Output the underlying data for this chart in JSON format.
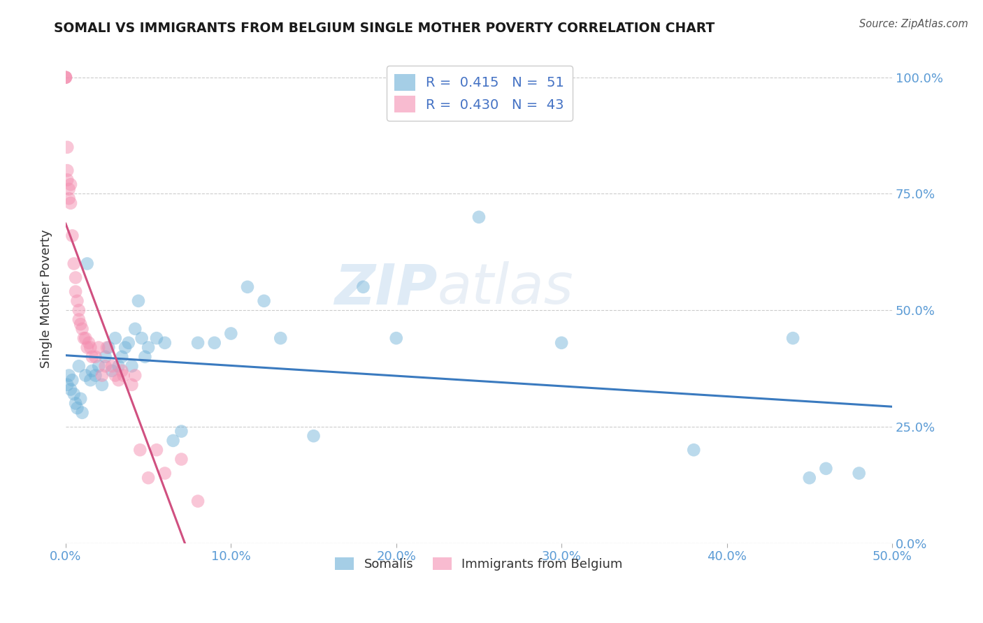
{
  "title": "SOMALI VS IMMIGRANTS FROM BELGIUM SINGLE MOTHER POVERTY CORRELATION CHART",
  "source": "Source: ZipAtlas.com",
  "ylabel": "Single Mother Poverty",
  "legend_label_somali": "Somalis",
  "legend_label_belgium": "Immigrants from Belgium",
  "somali_color": "#6aaed6",
  "belgium_color": "#f48fb1",
  "trend_somali_color": "#3a7abf",
  "trend_belgium_color": "#d05080",
  "watermark_zip": "ZIP",
  "watermark_atlas": "atlas",
  "somali_x": [
    0.001,
    0.002,
    0.003,
    0.004,
    0.005,
    0.006,
    0.007,
    0.008,
    0.009,
    0.01,
    0.012,
    0.013,
    0.015,
    0.016,
    0.018,
    0.02,
    0.022,
    0.024,
    0.026,
    0.028,
    0.03,
    0.032,
    0.034,
    0.036,
    0.038,
    0.04,
    0.042,
    0.044,
    0.046,
    0.048,
    0.05,
    0.055,
    0.06,
    0.065,
    0.07,
    0.08,
    0.09,
    0.1,
    0.11,
    0.12,
    0.13,
    0.15,
    0.18,
    0.2,
    0.25,
    0.3,
    0.38,
    0.44,
    0.45,
    0.46,
    0.48
  ],
  "somali_y": [
    0.34,
    0.36,
    0.33,
    0.35,
    0.32,
    0.3,
    0.29,
    0.38,
    0.31,
    0.28,
    0.36,
    0.6,
    0.35,
    0.37,
    0.36,
    0.38,
    0.34,
    0.4,
    0.42,
    0.37,
    0.44,
    0.38,
    0.4,
    0.42,
    0.43,
    0.38,
    0.46,
    0.52,
    0.44,
    0.4,
    0.42,
    0.44,
    0.43,
    0.22,
    0.24,
    0.43,
    0.43,
    0.45,
    0.55,
    0.52,
    0.44,
    0.23,
    0.55,
    0.44,
    0.7,
    0.43,
    0.2,
    0.44,
    0.14,
    0.16,
    0.15
  ],
  "belgium_x": [
    0.0,
    0.0,
    0.0,
    0.001,
    0.001,
    0.001,
    0.002,
    0.002,
    0.003,
    0.003,
    0.004,
    0.005,
    0.006,
    0.006,
    0.007,
    0.008,
    0.008,
    0.009,
    0.01,
    0.011,
    0.012,
    0.013,
    0.014,
    0.015,
    0.016,
    0.018,
    0.02,
    0.022,
    0.024,
    0.025,
    0.028,
    0.03,
    0.032,
    0.034,
    0.035,
    0.04,
    0.042,
    0.045,
    0.05,
    0.055,
    0.06,
    0.07,
    0.08
  ],
  "belgium_y": [
    1.0,
    1.0,
    1.0,
    0.85,
    0.8,
    0.78,
    0.76,
    0.74,
    0.77,
    0.73,
    0.66,
    0.6,
    0.57,
    0.54,
    0.52,
    0.5,
    0.48,
    0.47,
    0.46,
    0.44,
    0.44,
    0.42,
    0.43,
    0.42,
    0.4,
    0.4,
    0.42,
    0.36,
    0.38,
    0.42,
    0.38,
    0.36,
    0.35,
    0.37,
    0.36,
    0.34,
    0.36,
    0.2,
    0.14,
    0.2,
    0.15,
    0.18,
    0.09
  ],
  "xlim": [
    0.0,
    0.5
  ],
  "ylim": [
    0.0,
    1.05
  ],
  "xtick_positions": [
    0.0,
    0.1,
    0.2,
    0.3,
    0.4,
    0.5
  ],
  "ytick_positions": [
    0.0,
    0.25,
    0.5,
    0.75,
    1.0
  ],
  "grid_color": "#cccccc",
  "background_color": "#ffffff"
}
